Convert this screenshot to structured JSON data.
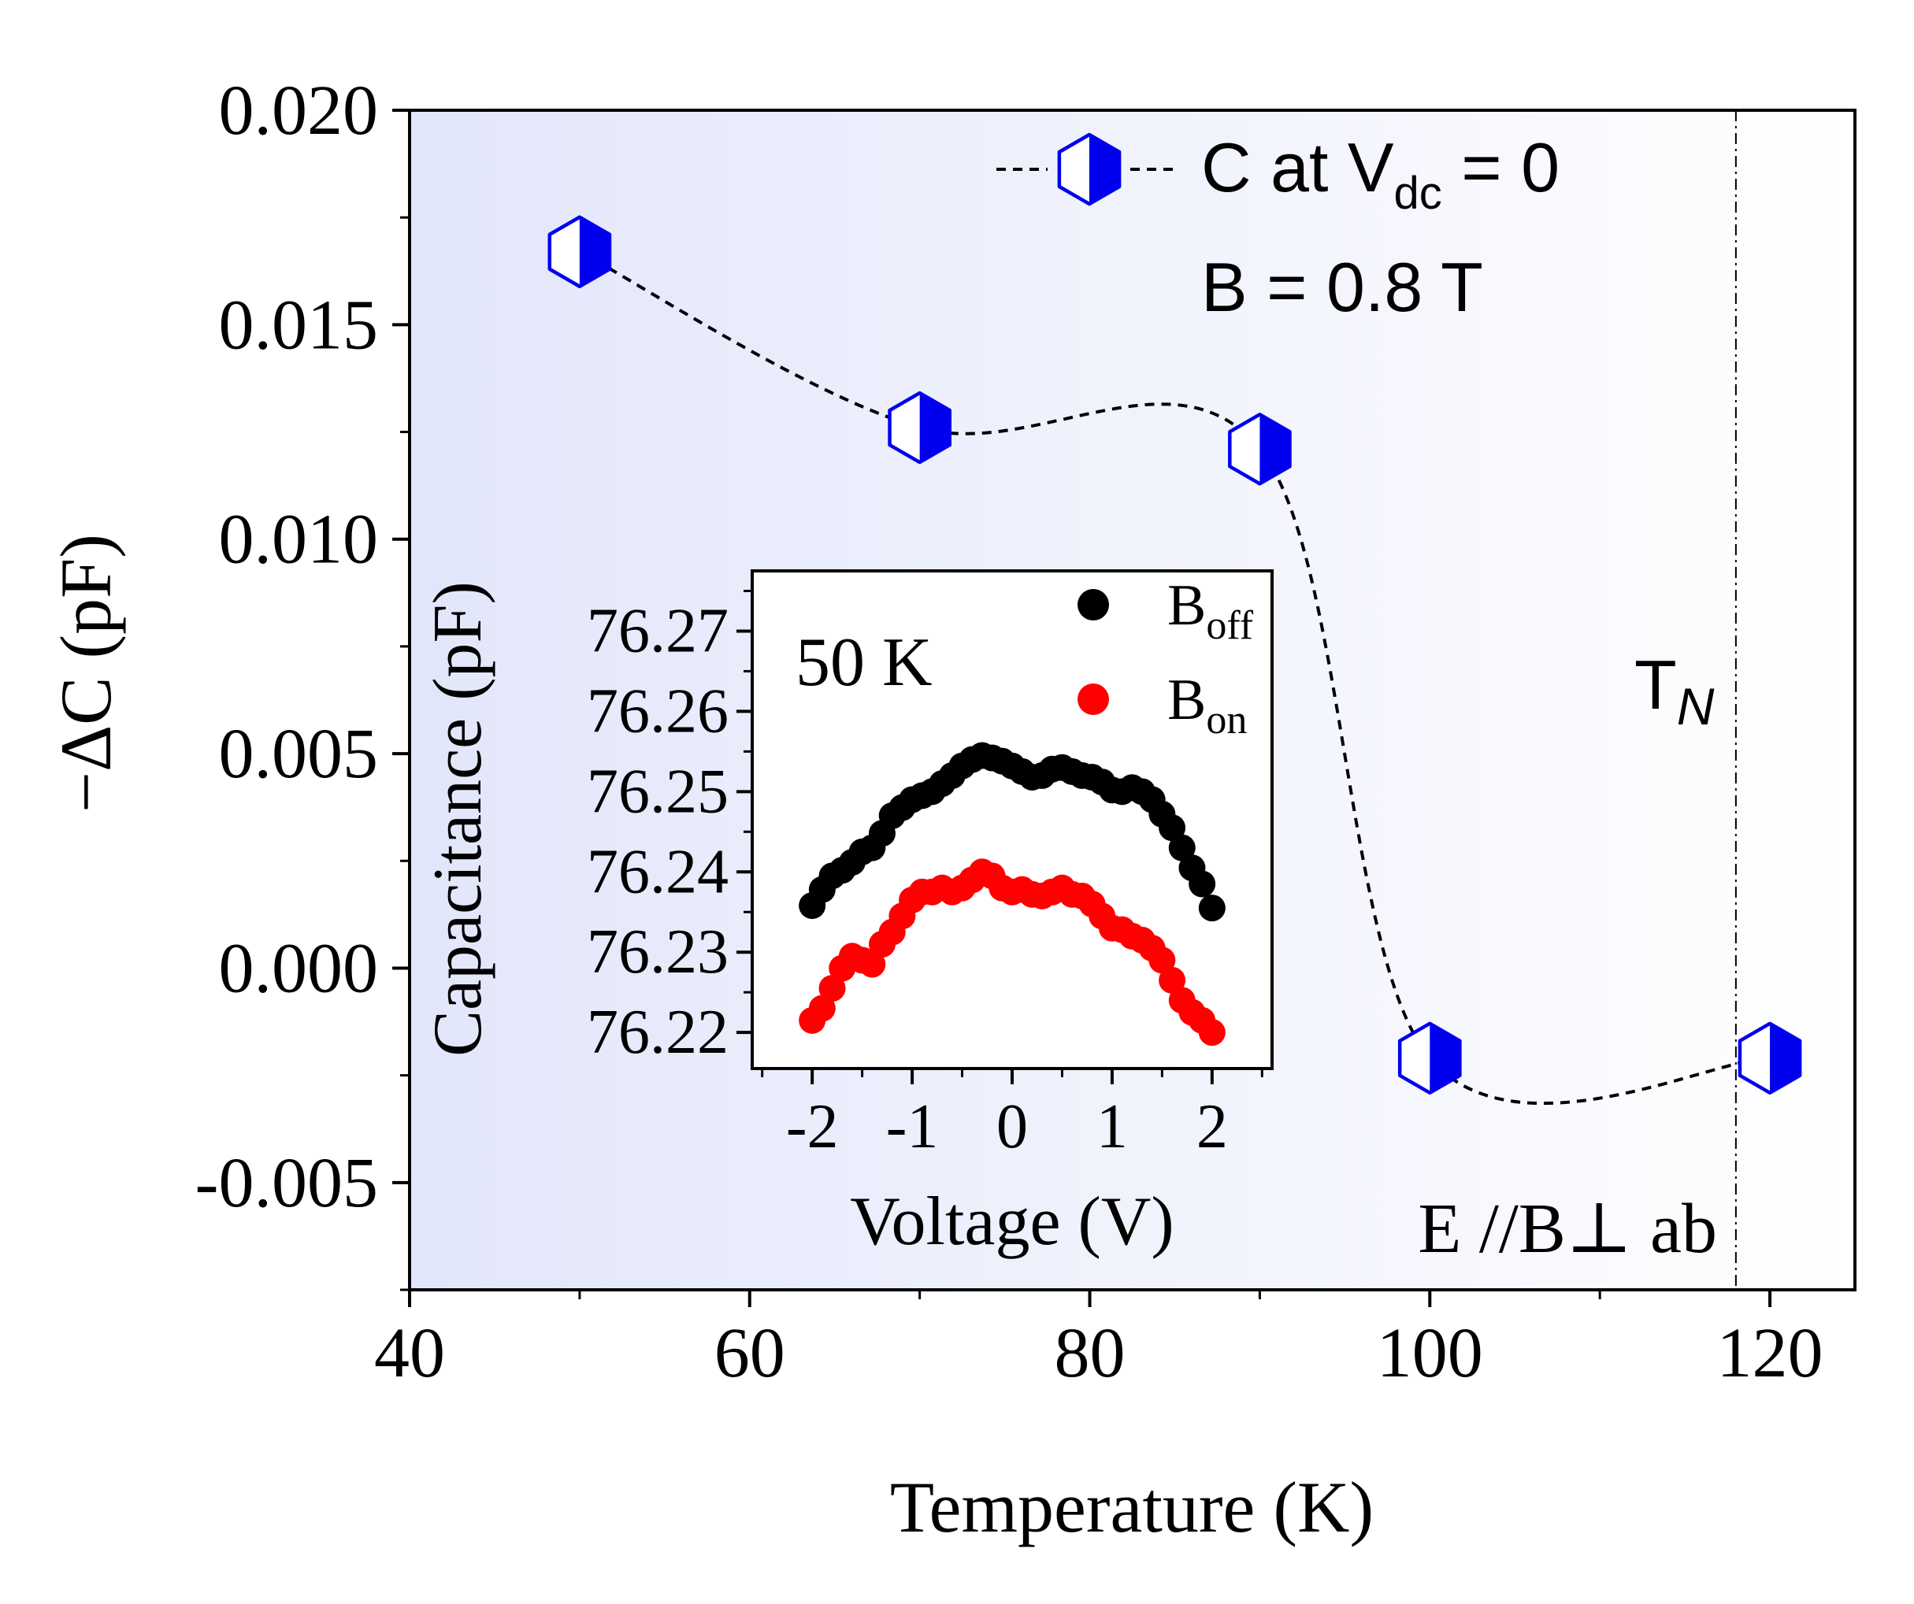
{
  "chart_data": [
    {
      "type": "line",
      "title": "",
      "xlabel": "Temperature (K)",
      "ylabel": "−ΔC (pF)",
      "xlim": [
        40,
        125
      ],
      "ylim": [
        -0.0075,
        0.02
      ],
      "x_ticks": [
        40,
        60,
        80,
        100,
        120
      ],
      "x_tick_labels": [
        "40",
        "60",
        "80",
        "100",
        "120"
      ],
      "y_ticks": [
        -0.005,
        0.0,
        0.005,
        0.01,
        0.015,
        0.02
      ],
      "y_tick_labels": [
        "-0.005",
        "0.000",
        "0.005",
        "0.010",
        "0.015",
        "0.020"
      ],
      "series": [
        {
          "name": "C at Vdc = 0",
          "legend_main": "C at V",
          "legend_sub": "dc",
          "legend_tail": " = 0",
          "x": [
            50,
            70,
            90,
            100,
            120
          ],
          "values": [
            0.0167,
            0.0126,
            0.0121,
            -0.0021,
            -0.0021
          ],
          "marker": "half-filled hexagon",
          "color": "#0000ee",
          "line_style": "dashed"
        }
      ],
      "annotations": {
        "field": "B = 0.8 T",
        "tn_main": "T",
        "tn_sub": "N",
        "tn_x": 118,
        "geometry": "E //B⊥ ab"
      }
    },
    {
      "type": "scatter",
      "title": "",
      "xlabel": "Voltage (V)",
      "ylabel": "Capacitance (pF)",
      "xlim": [
        -2.6,
        2.6
      ],
      "ylim": [
        76.2155,
        76.2775
      ],
      "x_ticks": [
        -2,
        -1,
        0,
        1,
        2
      ],
      "x_tick_labels": [
        "-2",
        "-1",
        "0",
        "1",
        "2"
      ],
      "y_ticks": [
        76.22,
        76.23,
        76.24,
        76.25,
        76.26,
        76.27
      ],
      "y_tick_labels": [
        "76.22",
        "76.23",
        "76.24",
        "76.25",
        "76.26",
        "76.27"
      ],
      "annotation": "50 K",
      "series": [
        {
          "name": "B off",
          "legend_main": "B",
          "legend_sub": "off",
          "color": "#000000",
          "x": [
            -2.0,
            -1.9,
            -1.8,
            -1.7,
            -1.6,
            -1.5,
            -1.4,
            -1.3,
            -1.2,
            -1.1,
            -1.0,
            -0.9,
            -0.8,
            -0.7,
            -0.6,
            -0.5,
            -0.4,
            -0.3,
            -0.2,
            -0.1,
            0.0,
            0.1,
            0.2,
            0.3,
            0.4,
            0.5,
            0.6,
            0.7,
            0.8,
            0.9,
            1.0,
            1.1,
            1.2,
            1.3,
            1.4,
            1.5,
            1.6,
            1.7,
            1.8,
            1.9,
            2.0
          ],
          "values": [
            76.2358,
            76.2378,
            76.2395,
            76.2402,
            76.2412,
            76.2425,
            76.243,
            76.2448,
            76.247,
            76.248,
            76.249,
            76.2495,
            76.25,
            76.251,
            76.252,
            76.2532,
            76.254,
            76.2545,
            76.2542,
            76.2538,
            76.2532,
            76.2525,
            76.2518,
            76.252,
            76.2528,
            76.253,
            76.2525,
            76.252,
            76.2518,
            76.2512,
            76.2502,
            76.25,
            76.2505,
            76.25,
            76.249,
            76.2472,
            76.2455,
            76.243,
            76.2405,
            76.2385,
            76.2355
          ]
        },
        {
          "name": "B on",
          "legend_main": "B",
          "legend_sub": "on",
          "color": "#ff0000",
          "x": [
            -2.0,
            -1.9,
            -1.8,
            -1.7,
            -1.6,
            -1.5,
            -1.4,
            -1.3,
            -1.2,
            -1.1,
            -1.0,
            -0.9,
            -0.8,
            -0.7,
            -0.6,
            -0.5,
            -0.4,
            -0.3,
            -0.2,
            -0.1,
            0.0,
            0.1,
            0.2,
            0.3,
            0.4,
            0.5,
            0.6,
            0.7,
            0.8,
            0.9,
            1.0,
            1.1,
            1.2,
            1.3,
            1.4,
            1.5,
            1.6,
            1.7,
            1.8,
            1.9,
            2.0
          ],
          "values": [
            76.2215,
            76.223,
            76.2255,
            76.228,
            76.2295,
            76.229,
            76.2285,
            76.231,
            76.2325,
            76.2345,
            76.2365,
            76.2375,
            76.2375,
            76.238,
            76.2375,
            76.238,
            76.239,
            76.24,
            76.2395,
            76.238,
            76.2375,
            76.2378,
            76.2372,
            76.237,
            76.2375,
            76.238,
            76.2372,
            76.237,
            76.236,
            76.2345,
            76.233,
            76.2328,
            76.232,
            76.2315,
            76.2305,
            76.229,
            76.2265,
            76.224,
            76.2225,
            76.2215,
            76.22
          ]
        }
      ]
    }
  ]
}
